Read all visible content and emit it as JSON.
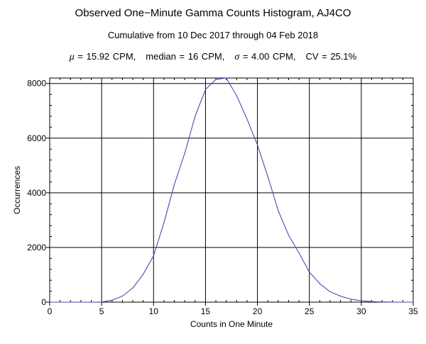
{
  "chart_data": {
    "type": "line",
    "title": "Observed One−Minute Gamma Counts Histogram, AJ4CO",
    "subtitle": "Cumulative from 10 Dec 2017 through 04 Feb 2018",
    "stats": {
      "mu_symbol": "μ",
      "mu_text": " = 15.92 CPM,",
      "median_text": "median = 16 CPM,",
      "sigma_symbol": "σ",
      "sigma_text": " = 4.00 CPM,",
      "cv_text": "CV = 25.1%"
    },
    "xlabel": "Counts in One Minute",
    "ylabel": "Occurrences",
    "xlim": [
      0,
      35
    ],
    "ylim": [
      0,
      8200
    ],
    "xticks": [
      0,
      5,
      10,
      15,
      20,
      25,
      30,
      35
    ],
    "yticks": [
      0,
      2000,
      4000,
      6000,
      8000
    ],
    "grid": true,
    "line_color": "#4b4bb0",
    "series": [
      {
        "x": [
          0,
          1,
          2,
          3,
          4,
          5,
          6,
          7,
          8,
          9,
          10,
          11,
          12,
          13,
          14,
          15,
          16,
          17,
          18,
          19,
          20,
          21,
          22,
          23,
          24,
          25,
          26,
          27,
          28,
          29,
          30,
          31,
          32,
          33,
          34,
          35
        ],
        "values": [
          0,
          0,
          0,
          0,
          0,
          5,
          70,
          220,
          520,
          1020,
          1700,
          2900,
          4300,
          5450,
          6800,
          7780,
          8150,
          8200,
          7550,
          6700,
          5750,
          4600,
          3350,
          2450,
          1800,
          1100,
          680,
          380,
          220,
          110,
          50,
          20,
          8,
          3,
          0,
          0
        ]
      }
    ]
  }
}
